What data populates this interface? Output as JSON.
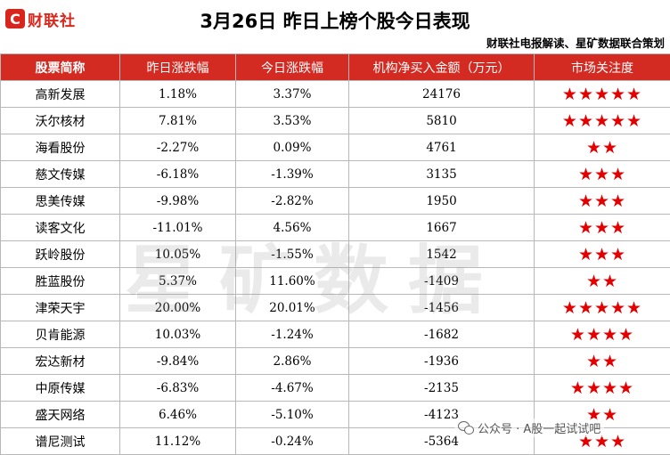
{
  "header": {
    "logo_mark": "C",
    "logo_text": "财联社",
    "title": "3月26日  昨日上榜个股今日表现",
    "subtitle": "财联社电报解读、星矿数据联合策划"
  },
  "table": {
    "columns": [
      "股票简称",
      "昨日涨跌幅",
      "今日涨跌幅",
      "机构净买入金额（万元）",
      "市场关注度"
    ],
    "rows": [
      {
        "name": "高新发展",
        "yesterday": "1.18%",
        "today": "3.37%",
        "net_buy": "24176",
        "stars": "★★★★★",
        "rating": 5
      },
      {
        "name": "沃尔核材",
        "yesterday": "7.81%",
        "today": "3.53%",
        "net_buy": "5810",
        "stars": "★★★★★",
        "rating": 5
      },
      {
        "name": "海看股份",
        "yesterday": "-2.27%",
        "today": "0.09%",
        "net_buy": "4761",
        "stars": "★★",
        "rating": 2
      },
      {
        "name": "慈文传媒",
        "yesterday": "-6.18%",
        "today": "-1.39%",
        "net_buy": "3135",
        "stars": "★★★",
        "rating": 3
      },
      {
        "name": "思美传媒",
        "yesterday": "-9.98%",
        "today": "-2.82%",
        "net_buy": "1950",
        "stars": "★★★",
        "rating": 3
      },
      {
        "name": "读客文化",
        "yesterday": "-11.01%",
        "today": "4.56%",
        "net_buy": "1667",
        "stars": "★★★",
        "rating": 3
      },
      {
        "name": "跃岭股份",
        "yesterday": "10.05%",
        "today": "-1.55%",
        "net_buy": "1542",
        "stars": "★★★",
        "rating": 3
      },
      {
        "name": "胜蓝股份",
        "yesterday": "5.37%",
        "today": "11.60%",
        "net_buy": "-1409",
        "stars": "★★",
        "rating": 2
      },
      {
        "name": "津荣天宇",
        "yesterday": "20.00%",
        "today": "20.01%",
        "net_buy": "-1456",
        "stars": "★★★★★",
        "rating": 5
      },
      {
        "name": "贝肯能源",
        "yesterday": "10.03%",
        "today": "-1.24%",
        "net_buy": "-1682",
        "stars": "★★★★",
        "rating": 4
      },
      {
        "name": "宏达新材",
        "yesterday": "-9.84%",
        "today": "2.86%",
        "net_buy": "-1936",
        "stars": "★★",
        "rating": 2
      },
      {
        "name": "中原传媒",
        "yesterday": "-6.83%",
        "today": "-4.67%",
        "net_buy": "-2135",
        "stars": "★★★★",
        "rating": 4
      },
      {
        "name": "盛天网络",
        "yesterday": "6.46%",
        "today": "-5.10%",
        "net_buy": "-4123",
        "stars": "★★",
        "rating": 2
      },
      {
        "name": "谱尼测试",
        "yesterday": "11.12%",
        "today": "-0.24%",
        "net_buy": "-5364",
        "stars": "★★★",
        "rating": 3
      }
    ]
  },
  "watermark": "星矿数据",
  "wechat_tag": "公众号 · A股一起试试吧",
  "colors": {
    "header_red": "#d32a22",
    "star_red": "#e30000",
    "brand_red": "#d9261c"
  },
  "icons": {
    "logo": "cailianshe-logo-icon",
    "wechat": "wechat-icon"
  }
}
